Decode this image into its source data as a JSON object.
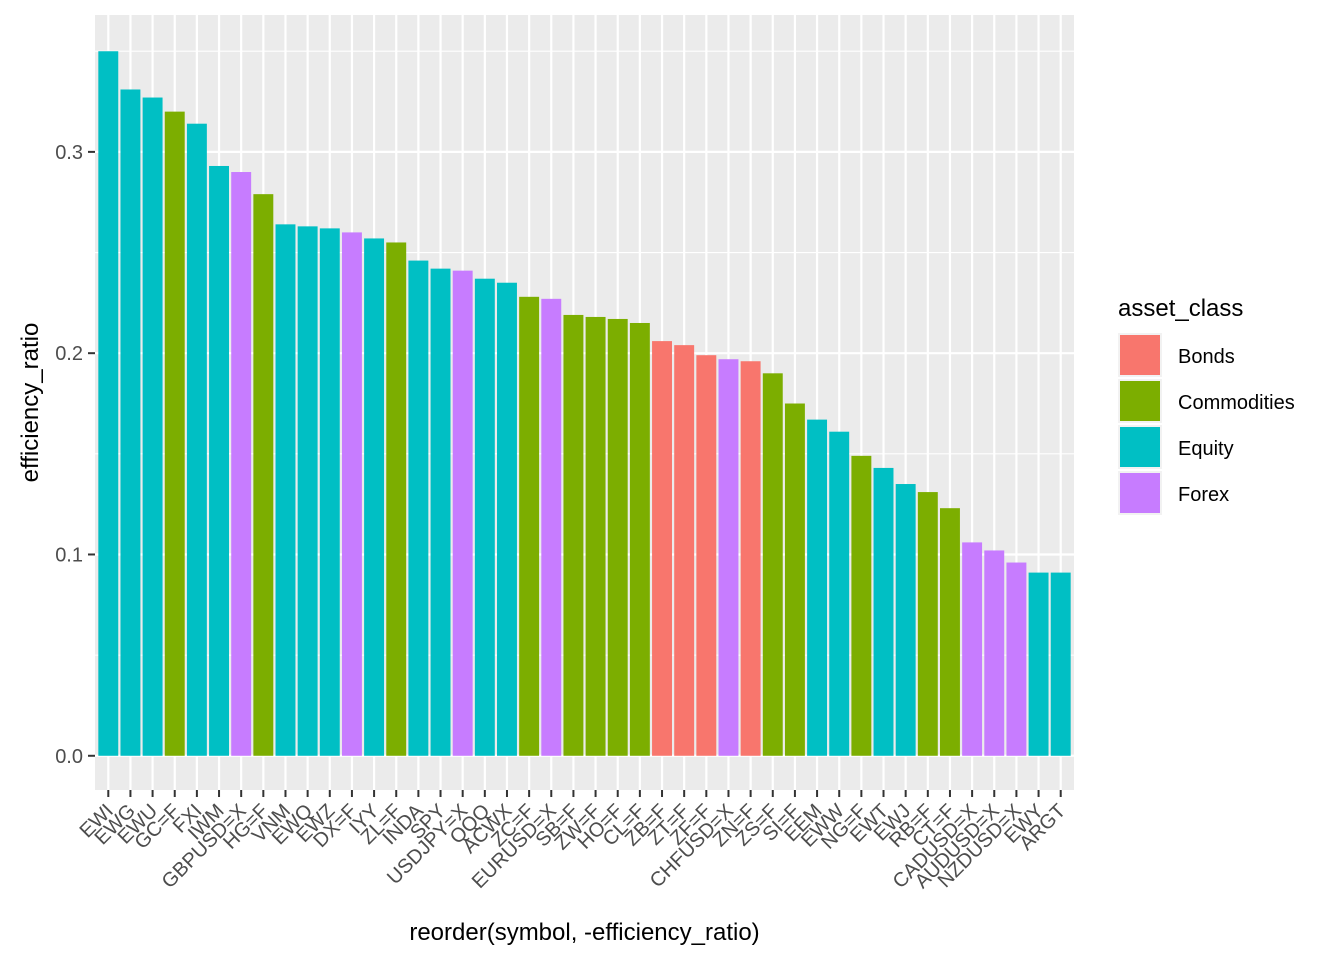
{
  "chart_data": {
    "type": "bar",
    "xlabel": "reorder(symbol, -efficiency_ratio)",
    "ylabel": "efficiency_ratio",
    "ylim": [
      -0.017,
      0.368
    ],
    "y_ticks": [
      {
        "value": 0.0,
        "label": "0.0"
      },
      {
        "value": 0.1,
        "label": "0.1"
      },
      {
        "value": 0.2,
        "label": "0.2"
      },
      {
        "value": 0.3,
        "label": "0.3"
      }
    ],
    "grid": true,
    "legend": {
      "title": "asset_class",
      "position": "right",
      "entries": [
        {
          "name": "Bonds",
          "color": "#F8766D"
        },
        {
          "name": "Commodities",
          "color": "#7CAE00"
        },
        {
          "name": "Equity",
          "color": "#00BFC4"
        },
        {
          "name": "Forex",
          "color": "#C77CFF"
        }
      ]
    },
    "bars": [
      {
        "symbol": "EWI",
        "value": 0.35,
        "asset_class": "Equity"
      },
      {
        "symbol": "EWG",
        "value": 0.331,
        "asset_class": "Equity"
      },
      {
        "symbol": "EWU",
        "value": 0.327,
        "asset_class": "Equity"
      },
      {
        "symbol": "GC=F",
        "value": 0.32,
        "asset_class": "Commodities"
      },
      {
        "symbol": "FXI",
        "value": 0.314,
        "asset_class": "Equity"
      },
      {
        "symbol": "IWM",
        "value": 0.293,
        "asset_class": "Equity"
      },
      {
        "symbol": "GBPUSD=X",
        "value": 0.29,
        "asset_class": "Forex"
      },
      {
        "symbol": "HG=F",
        "value": 0.279,
        "asset_class": "Commodities"
      },
      {
        "symbol": "VNM",
        "value": 0.264,
        "asset_class": "Equity"
      },
      {
        "symbol": "EWQ",
        "value": 0.263,
        "asset_class": "Equity"
      },
      {
        "symbol": "EWZ",
        "value": 0.262,
        "asset_class": "Equity"
      },
      {
        "symbol": "DX=F",
        "value": 0.26,
        "asset_class": "Forex"
      },
      {
        "symbol": "IYY",
        "value": 0.257,
        "asset_class": "Equity"
      },
      {
        "symbol": "ZL=F",
        "value": 0.255,
        "asset_class": "Commodities"
      },
      {
        "symbol": "INDA",
        "value": 0.246,
        "asset_class": "Equity"
      },
      {
        "symbol": "SPY",
        "value": 0.242,
        "asset_class": "Equity"
      },
      {
        "symbol": "USDJPY=X",
        "value": 0.241,
        "asset_class": "Forex"
      },
      {
        "symbol": "QQQ",
        "value": 0.237,
        "asset_class": "Equity"
      },
      {
        "symbol": "ACWX",
        "value": 0.235,
        "asset_class": "Equity"
      },
      {
        "symbol": "ZC=F",
        "value": 0.228,
        "asset_class": "Commodities"
      },
      {
        "symbol": "EURUSD=X",
        "value": 0.227,
        "asset_class": "Forex"
      },
      {
        "symbol": "SB=F",
        "value": 0.219,
        "asset_class": "Commodities"
      },
      {
        "symbol": "ZW=F",
        "value": 0.218,
        "asset_class": "Commodities"
      },
      {
        "symbol": "HO=F",
        "value": 0.217,
        "asset_class": "Commodities"
      },
      {
        "symbol": "CL=F",
        "value": 0.215,
        "asset_class": "Commodities"
      },
      {
        "symbol": "ZB=F",
        "value": 0.206,
        "asset_class": "Bonds"
      },
      {
        "symbol": "ZT=F",
        "value": 0.204,
        "asset_class": "Bonds"
      },
      {
        "symbol": "ZF=F",
        "value": 0.199,
        "asset_class": "Bonds"
      },
      {
        "symbol": "CHFUSD=X",
        "value": 0.197,
        "asset_class": "Forex"
      },
      {
        "symbol": "ZN=F",
        "value": 0.196,
        "asset_class": "Bonds"
      },
      {
        "symbol": "ZS=F",
        "value": 0.19,
        "asset_class": "Commodities"
      },
      {
        "symbol": "SI=F",
        "value": 0.175,
        "asset_class": "Commodities"
      },
      {
        "symbol": "EEM",
        "value": 0.167,
        "asset_class": "Equity"
      },
      {
        "symbol": "EWW",
        "value": 0.161,
        "asset_class": "Equity"
      },
      {
        "symbol": "NG=F",
        "value": 0.149,
        "asset_class": "Commodities"
      },
      {
        "symbol": "EWT",
        "value": 0.143,
        "asset_class": "Equity"
      },
      {
        "symbol": "EWJ",
        "value": 0.135,
        "asset_class": "Equity"
      },
      {
        "symbol": "RB=F",
        "value": 0.131,
        "asset_class": "Commodities"
      },
      {
        "symbol": "CT=F",
        "value": 0.123,
        "asset_class": "Commodities"
      },
      {
        "symbol": "CADUSD=X",
        "value": 0.106,
        "asset_class": "Forex"
      },
      {
        "symbol": "AUDUSD=X",
        "value": 0.102,
        "asset_class": "Forex"
      },
      {
        "symbol": "NZDUSD=X",
        "value": 0.096,
        "asset_class": "Forex"
      },
      {
        "symbol": "EWY",
        "value": 0.091,
        "asset_class": "Equity"
      },
      {
        "symbol": "ARGT",
        "value": 0.091,
        "asset_class": "Equity"
      }
    ]
  },
  "colors": {
    "panel_background": "#EBEBEB",
    "grid_major": "#FFFFFF",
    "tick_text": "#4D4D4D"
  }
}
